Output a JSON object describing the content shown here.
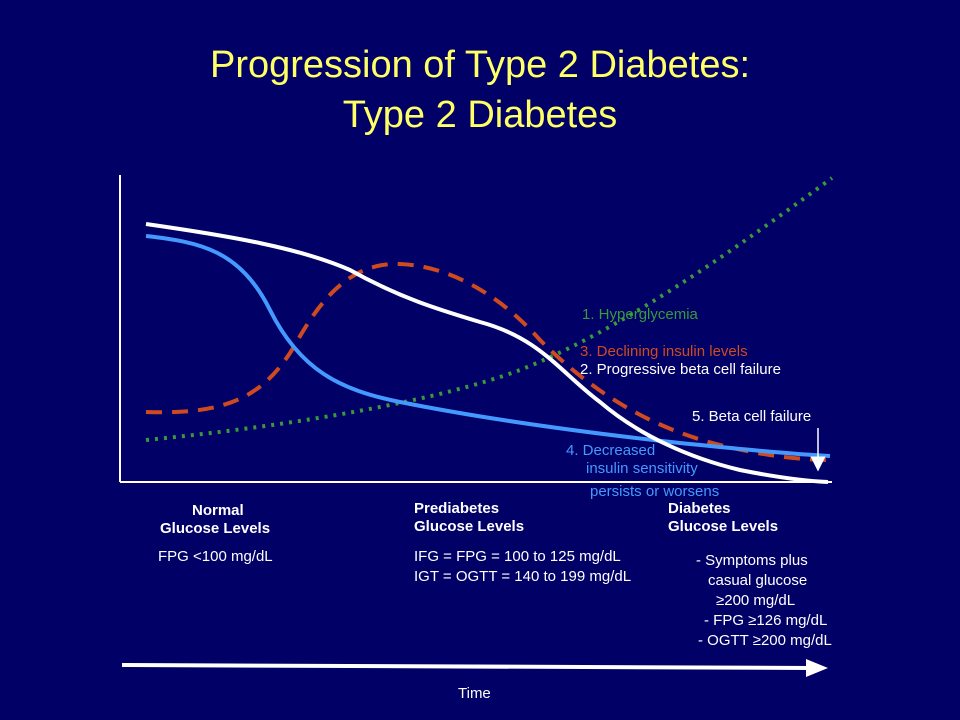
{
  "title": {
    "line1": "Progression of Type 2 Diabetes:",
    "line2": "Type 2 Diabetes"
  },
  "colors": {
    "background": "#000066",
    "title": "#FFFF66",
    "hyperglycemia": "#3A9A3A",
    "insulin": "#D04A20",
    "beta_cell": "#FFFFFF",
    "insulin_sensitivity": "#4499FF"
  },
  "curve_labels": {
    "hyperglycemia": "1. Hyperglycemia",
    "insulin_levels": "3. Declining insulin levels",
    "beta_cell": "2. Progressive beta cell failure",
    "beta_failure": "5. Beta cell failure",
    "sensitivity_line1": "4. Decreased",
    "sensitivity_line2": "insulin sensitivity",
    "sensitivity_line3": "persists or worsens"
  },
  "stages": {
    "normal": {
      "line1": "Normal",
      "line2": "Glucose Levels",
      "criteria": "FPG <100 mg/dL"
    },
    "prediabetes": {
      "line1": "Prediabetes",
      "line2": "Glucose Levels",
      "criteria1": "IFG = FPG = 100 to 125 mg/dL",
      "criteria2": "IGT = OGTT = 140 to 199 mg/dL"
    },
    "diabetes": {
      "line1": "Diabetes",
      "line2": "Glucose Levels",
      "criteria1": "- Symptoms plus",
      "criteria2": "casual glucose",
      "criteria3": "≥200 mg/dL",
      "criteria4": "- FPG ≥126 mg/dL",
      "criteria5": "- OGTT ≥200 mg/dL"
    }
  },
  "time_label": "Time"
}
